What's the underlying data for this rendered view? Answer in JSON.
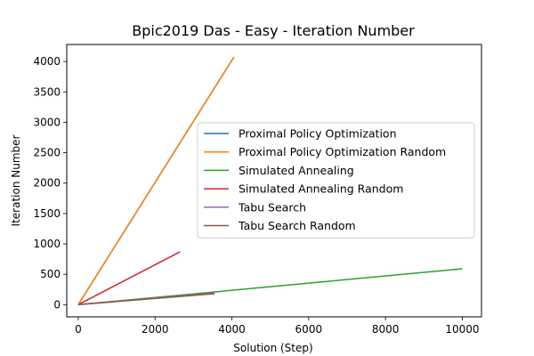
{
  "chart_data": {
    "type": "line",
    "title": "Bpic2019 Das - Easy - Iteration Number",
    "xlabel": "Solution (Step)",
    "ylabel": "Iteration Number",
    "xlim": [
      -300,
      10500
    ],
    "ylim": [
      -200,
      4280
    ],
    "x_ticks": [
      0,
      2000,
      4000,
      6000,
      8000,
      10000
    ],
    "x_tick_labels": [
      "0",
      "2000",
      "4000",
      "6000",
      "8000",
      "10000"
    ],
    "y_ticks": [
      0,
      500,
      1000,
      1500,
      2000,
      2500,
      3000,
      3500,
      4000
    ],
    "y_tick_labels": [
      "0",
      "500",
      "1000",
      "1500",
      "2000",
      "2500",
      "3000",
      "3500",
      "4000"
    ],
    "grid": false,
    "legend_position": "center-right",
    "series": [
      {
        "name": "Proximal Policy Optimization",
        "color": "#1f77b4",
        "x": [
          0,
          4050
        ],
        "y": [
          0,
          4070
        ]
      },
      {
        "name": "Proximal Policy Optimization Random",
        "color": "#ff7f0e",
        "x": [
          0,
          4050
        ],
        "y": [
          0,
          4070
        ]
      },
      {
        "name": "Simulated Annealing",
        "color": "#2ca02c",
        "x": [
          0,
          10000
        ],
        "y": [
          0,
          590
        ]
      },
      {
        "name": "Simulated Annealing Random",
        "color": "#d62728",
        "x": [
          0,
          2650
        ],
        "y": [
          0,
          870
        ]
      },
      {
        "name": "Tabu Search",
        "color": "#9467bd",
        "x": [
          0,
          3550
        ],
        "y": [
          0,
          190
        ]
      },
      {
        "name": "Tabu Search Random",
        "color": "#8c564b",
        "x": [
          0,
          3550
        ],
        "y": [
          0,
          180
        ]
      }
    ]
  }
}
